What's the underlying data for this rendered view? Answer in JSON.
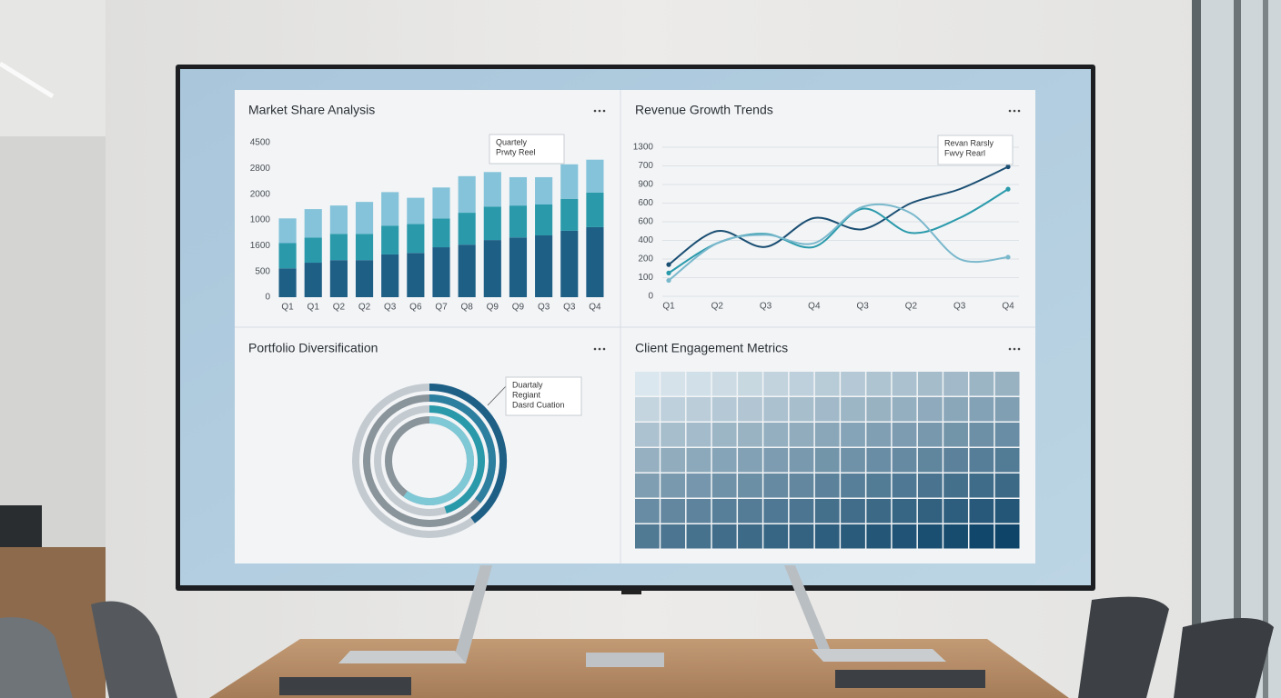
{
  "chart_data": [
    {
      "type": "bar",
      "title": "Market Share Analysis",
      "categories": [
        "Q1",
        "Q1",
        "Q2",
        "Q2",
        "Q3",
        "Q6",
        "Q7",
        "Q8",
        "Q9",
        "Q9",
        "Q3",
        "Q3",
        "Q4"
      ],
      "series": [
        {
          "color": "#1e5f86",
          "values": [
            560,
            670,
            720,
            720,
            830,
            860,
            970,
            1020,
            1110,
            1160,
            1200,
            1290,
            1360
          ]
        },
        {
          "color": "#2a9aab",
          "values": [
            490,
            490,
            510,
            510,
            560,
            560,
            560,
            620,
            650,
            620,
            600,
            620,
            670
          ]
        },
        {
          "color": "#84c3d9",
          "values": [
            480,
            550,
            550,
            620,
            650,
            510,
            600,
            710,
            670,
            550,
            530,
            670,
            640
          ]
        }
      ],
      "ylim": [
        0,
        3000
      ],
      "yticks": [
        0,
        500,
        {
          "value": 1000,
          "label": "1600"
        },
        {
          "value": 1500,
          "label": "1000"
        },
        {
          "value": 2000,
          "label": "2000"
        },
        {
          "value": 2500,
          "label": "2800"
        },
        {
          "value": 3000,
          "label": "4500"
        }
      ],
      "annotation": [
        "Quartely",
        "Prwty Reel"
      ]
    },
    {
      "type": "line",
      "title": "Revenue Growth Trends",
      "categories": [
        "Q1",
        "Q2",
        "Q3",
        "Q4",
        "Q3",
        "Q2",
        "Q3",
        "Q4"
      ],
      "series": [
        {
          "color": "#1a4e72",
          "values": [
            340,
            700,
            530,
            840,
            720,
            1000,
            1150,
            1390
          ]
        },
        {
          "color": "#2a9aab",
          "values": [
            250,
            570,
            670,
            530,
            940,
            680,
            840,
            1150
          ]
        },
        {
          "color": "#7ab8cc",
          "values": [
            170,
            570,
            660,
            570,
            960,
            890,
            400,
            420
          ]
        }
      ],
      "ylim": [
        0,
        1600
      ],
      "yticks": [
        0,
        {
          "value": 200,
          "label": "100"
        },
        {
          "value": 400,
          "label": "200"
        },
        {
          "value": 600,
          "label": "400"
        },
        {
          "value": 800,
          "label": "600"
        },
        {
          "value": 1000,
          "label": "600"
        },
        {
          "value": 1200,
          "label": "900"
        },
        {
          "value": 1400,
          "label": "700"
        },
        {
          "value": 1600,
          "label": "1300"
        }
      ],
      "grid": true,
      "annotation": [
        "Revan Rarsly",
        "Fwvy Rearl"
      ]
    },
    {
      "type": "radial",
      "title": "Portfolio Diversification",
      "series": [
        {
          "color": "#1e5f86",
          "track": "#c3cad0",
          "value": 40
        },
        {
          "color": "#2d7fa0",
          "track": "#8a949b",
          "value": 36
        },
        {
          "color": "#2a9aab",
          "track": "#c3cad0",
          "value": 45
        },
        {
          "color": "#7fc8d6",
          "track": "#8a949b",
          "value": 60
        }
      ],
      "annotation": [
        "Duartaly",
        "Regiant",
        "Dasrd Cuation"
      ]
    },
    {
      "type": "heatmap",
      "title": "Client Engagement Metrics",
      "colors": [
        "#dbe7ee",
        "#0d4468"
      ],
      "values": [
        [
          10,
          13,
          15,
          18,
          20,
          23,
          25,
          28,
          30,
          33,
          35,
          38,
          40,
          43,
          45
        ],
        [
          22,
          25,
          27,
          30,
          32,
          35,
          37,
          40,
          42,
          45,
          47,
          50,
          52,
          55,
          57
        ],
        [
          34,
          37,
          39,
          42,
          44,
          47,
          49,
          52,
          54,
          57,
          59,
          62,
          64,
          67,
          69
        ],
        [
          46,
          49,
          51,
          54,
          56,
          59,
          61,
          64,
          66,
          69,
          71,
          74,
          76,
          79,
          81
        ],
        [
          58,
          61,
          63,
          66,
          68,
          71,
          73,
          76,
          78,
          81,
          83,
          86,
          88,
          91,
          93
        ],
        [
          70,
          73,
          75,
          78,
          80,
          83,
          85,
          88,
          90,
          93,
          95,
          98,
          100,
          103,
          105
        ],
        [
          82,
          85,
          87,
          90,
          92,
          95,
          97,
          100,
          102,
          105,
          107,
          110,
          112,
          115,
          117
        ]
      ]
    }
  ]
}
